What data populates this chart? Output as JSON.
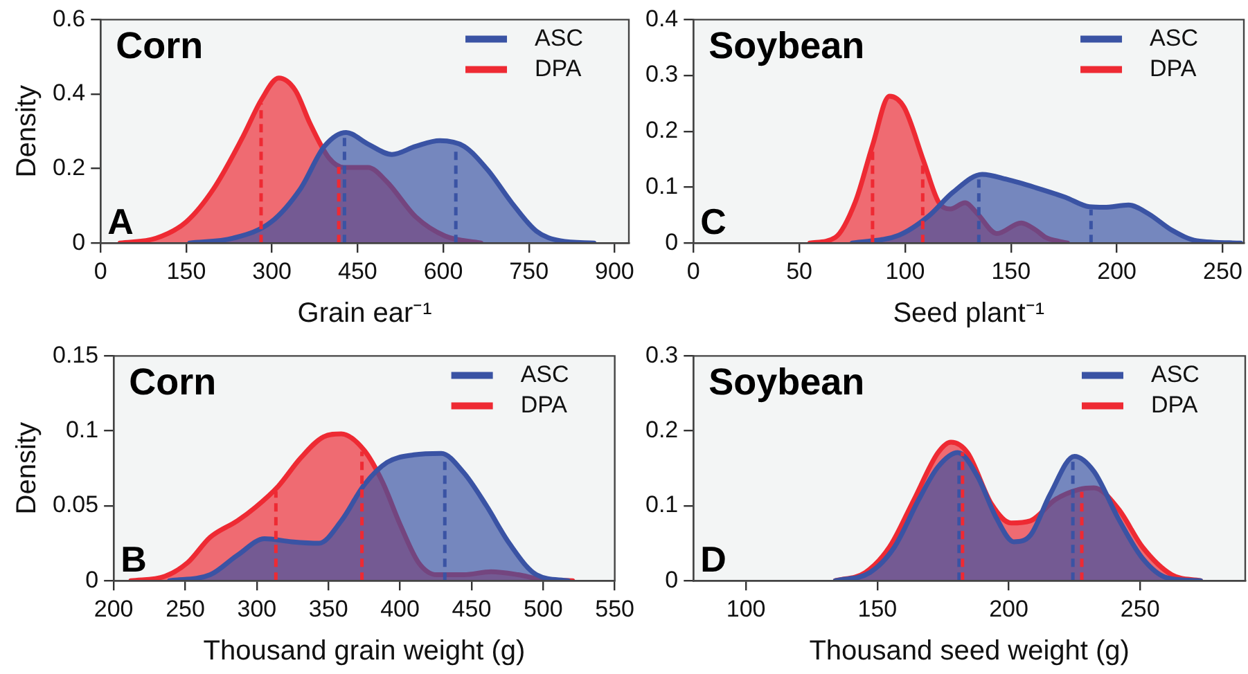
{
  "chart_data": [
    {
      "type": "area",
      "title": "Corn",
      "xlabel": "Grain ear⁻¹",
      "ylabel": "Density",
      "annotations": [
        "A"
      ],
      "legend": "top right",
      "marker": "none",
      "xlim": [
        0,
        925
      ],
      "xticks": [
        0,
        150,
        300,
        450,
        600,
        750,
        900
      ],
      "ylim": [
        0,
        0.6
      ],
      "yticks": [
        0,
        0.2,
        0.4,
        0.6
      ],
      "series": [
        {
          "name": "ASC",
          "color": "#3a53a4",
          "x": [
            156,
            232,
            299,
            350,
            392,
            430,
            468,
            510,
            552,
            594,
            636,
            678,
            720,
            763,
            805,
            864
          ],
          "values": [
            0,
            0.013,
            0.057,
            0.146,
            0.26,
            0.297,
            0.266,
            0.238,
            0.26,
            0.275,
            0.26,
            0.196,
            0.108,
            0.032,
            0.006,
            0
          ]
        },
        {
          "name": "DPA",
          "color": "#ee2a33",
          "x": [
            34,
            97,
            150,
            198,
            249,
            282,
            312,
            341,
            367,
            400,
            426,
            468,
            501,
            552,
            603,
            666
          ],
          "values": [
            0,
            0.013,
            0.057,
            0.146,
            0.285,
            0.386,
            0.443,
            0.41,
            0.32,
            0.228,
            0.203,
            0.203,
            0.165,
            0.07,
            0.019,
            0
          ]
        }
      ],
      "ref_lines": [
        {
          "axis": "x",
          "value": 281,
          "color": "#ee2a33",
          "line_style": "dashed"
        },
        {
          "axis": "x",
          "value": 417,
          "color": "#ee2a33",
          "line_style": "dashed"
        },
        {
          "axis": "x",
          "value": 427,
          "color": "#3a53a4",
          "line_style": "dashed"
        },
        {
          "axis": "x",
          "value": 622,
          "color": "#3a53a4",
          "line_style": "dashed"
        }
      ]
    },
    {
      "type": "area",
      "title": "Soybean",
      "xlabel": "Seed plant⁻¹",
      "annotations": [
        "C"
      ],
      "legend": "top right",
      "marker": "none",
      "xlim": [
        0,
        260
      ],
      "xticks": [
        0,
        50,
        100,
        150,
        200,
        250
      ],
      "ylim": [
        0,
        0.4
      ],
      "yticks": [
        0,
        0.1,
        0.2,
        0.3,
        0.4
      ],
      "series": [
        {
          "name": "ASC",
          "color": "#3a53a4",
          "x": [
            75,
            97,
            111,
            122.6,
            136.4,
            148,
            161.8,
            175.6,
            187,
            194,
            205.5,
            214.7,
            226,
            237.8,
            258.5
          ],
          "values": [
            0,
            0.014,
            0.048,
            0.091,
            0.123,
            0.114,
            0.099,
            0.082,
            0.065,
            0.064,
            0.068,
            0.053,
            0.023,
            0.004,
            0
          ]
        },
        {
          "name": "DPA",
          "color": "#ee2a33",
          "x": [
            55,
            67,
            76.5,
            84.6,
            92.6,
            99.5,
            108.8,
            115.7,
            121.4,
            128.3,
            134,
            143.3,
            154.8,
            161.8,
            166.4,
            176.7
          ],
          "values": [
            0,
            0.01,
            0.074,
            0.175,
            0.263,
            0.243,
            0.146,
            0.074,
            0.061,
            0.072,
            0.053,
            0.017,
            0.036,
            0.023,
            0.01,
            0
          ]
        }
      ],
      "ref_lines": [
        {
          "axis": "x",
          "value": 84.6,
          "color": "#ee2a33",
          "line_style": "dashed"
        },
        {
          "axis": "x",
          "value": 108.3,
          "color": "#ee2a33",
          "line_style": "dashed"
        },
        {
          "axis": "x",
          "value": 134.8,
          "color": "#3a53a4",
          "line_style": "dashed"
        },
        {
          "axis": "x",
          "value": 187.8,
          "color": "#3a53a4",
          "line_style": "dashed"
        }
      ]
    },
    {
      "type": "area",
      "title": "Corn",
      "xlabel": "Thousand grain weight (g)",
      "ylabel": "Density",
      "annotations": [
        "B"
      ],
      "legend": "top right",
      "marker": "none",
      "xlim": [
        200,
        550
      ],
      "xticks": [
        200,
        250,
        300,
        350,
        400,
        450,
        500,
        550
      ],
      "ylim": [
        0,
        0.15
      ],
      "yticks": [
        0,
        0.05,
        0.1,
        0.15
      ],
      "series": [
        {
          "name": "ASC",
          "color": "#3a53a4",
          "x": [
            239,
            267.4,
            286.4,
            305.4,
            324.4,
            343.4,
            359,
            375,
            391,
            409.8,
            428.8,
            444.6,
            460.4,
            476.3,
            495.3,
            517.4
          ],
          "values": [
            0,
            0.004,
            0.017,
            0.028,
            0.026,
            0.025,
            0.04,
            0.064,
            0.079,
            0.084,
            0.085,
            0.072,
            0.05,
            0.025,
            0.004,
            0
          ]
        },
        {
          "name": "DPA",
          "color": "#ee2a33",
          "x": [
            212,
            235.8,
            251.6,
            267.4,
            286.4,
            299,
            314.9,
            330.7,
            346.5,
            359,
            375,
            387.7,
            400.3,
            413,
            425.6,
            444.6,
            463.6,
            482.6,
            498.4,
            520.6
          ],
          "values": [
            0,
            0.003,
            0.012,
            0.029,
            0.04,
            0.049,
            0.063,
            0.082,
            0.096,
            0.098,
            0.087,
            0.066,
            0.037,
            0.012,
            0.004,
            0.004,
            0.006,
            0.004,
            0.001,
            0
          ]
        }
      ],
      "ref_lines": [
        {
          "axis": "x",
          "value": 313.3,
          "color": "#ee2a33",
          "line_style": "dashed"
        },
        {
          "axis": "x",
          "value": 373.4,
          "color": "#ee2a33",
          "line_style": "dashed"
        },
        {
          "axis": "x",
          "value": 431.3,
          "color": "#3a53a4",
          "line_style": "dashed"
        }
      ]
    },
    {
      "type": "area",
      "title": "Soybean",
      "xlabel": "Thousand seed weight (g)",
      "annotations": [
        "D"
      ],
      "legend": "top right",
      "marker": "none",
      "xlim": [
        80,
        290
      ],
      "xticks": [
        100,
        150,
        200,
        250
      ],
      "ylim": [
        0,
        0.3
      ],
      "yticks": [
        0,
        0.1,
        0.2,
        0.3
      ],
      "series": [
        {
          "name": "ASC",
          "color": "#3a53a4",
          "x": [
            134,
            147.2,
            156.5,
            165.7,
            173.1,
            180.6,
            188,
            195.4,
            201.9,
            208.3,
            215.7,
            225,
            232.4,
            241.7,
            250.9,
            260.2,
            273
          ],
          "values": [
            0,
            0.011,
            0.045,
            0.108,
            0.152,
            0.171,
            0.14,
            0.083,
            0.052,
            0.061,
            0.115,
            0.166,
            0.146,
            0.083,
            0.03,
            0.004,
            0
          ]
        },
        {
          "name": "DPA",
          "color": "#ee2a33",
          "x": [
            134,
            145.4,
            154.6,
            163.9,
            173.1,
            178,
            184.3,
            193.5,
            200.9,
            208.3,
            217.6,
            226.9,
            232.4,
            241.7,
            250.9,
            262,
            273
          ],
          "values": [
            0,
            0.011,
            0.045,
            0.108,
            0.171,
            0.185,
            0.171,
            0.102,
            0.077,
            0.08,
            0.108,
            0.122,
            0.124,
            0.096,
            0.045,
            0.008,
            0
          ]
        }
      ],
      "ref_lines": [
        {
          "axis": "x",
          "value": 181.1,
          "color": "#3a53a4",
          "line_style": "dashed"
        },
        {
          "axis": "x",
          "value": 182.4,
          "color": "#ee2a33",
          "line_style": "dashed"
        },
        {
          "axis": "x",
          "value": 224.4,
          "color": "#3a53a4",
          "line_style": "dashed"
        },
        {
          "axis": "x",
          "value": 227.8,
          "color": "#ee2a33",
          "line_style": "dashed"
        }
      ]
    }
  ]
}
